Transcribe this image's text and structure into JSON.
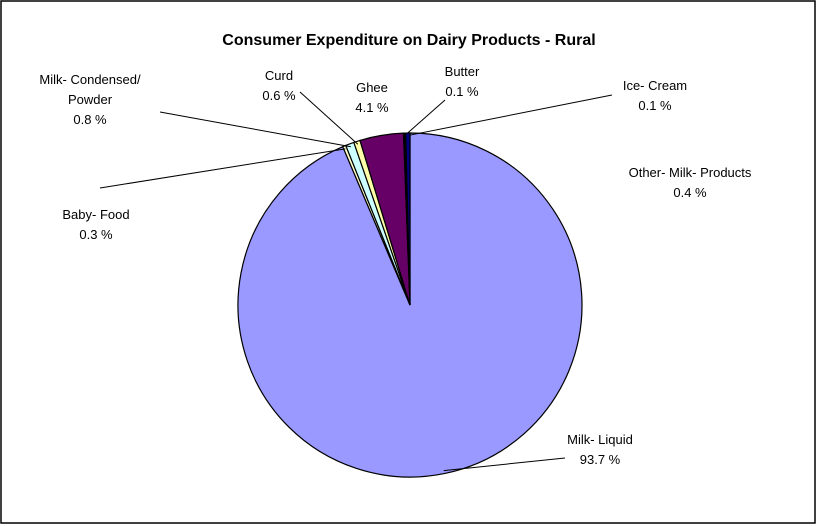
{
  "chart_data": {
    "type": "pie",
    "title": "Consumer Expenditure on Dairy Products - Rural",
    "categories": [
      "Milk- Liquid",
      "Baby- Food",
      "Milk- Condensed/ Powder",
      "Curd",
      "Ghee",
      "Butter",
      "Ice- Cream",
      "Other- Milk- Products"
    ],
    "values": [
      93.7,
      0.3,
      0.8,
      0.6,
      4.1,
      0.1,
      0.1,
      0.4
    ],
    "value_labels": [
      "93.7 %",
      "0.3 %",
      "0.8 %",
      "0.6 %",
      "4.1 %",
      "0.1 %",
      "0.1 %",
      "0.4 %"
    ],
    "colors": [
      "#9999ff",
      "#ffffcc",
      "#ccffff",
      "#ffffaa",
      "#660066",
      "#0066cc",
      "#ccccff",
      "#000080"
    ]
  }
}
